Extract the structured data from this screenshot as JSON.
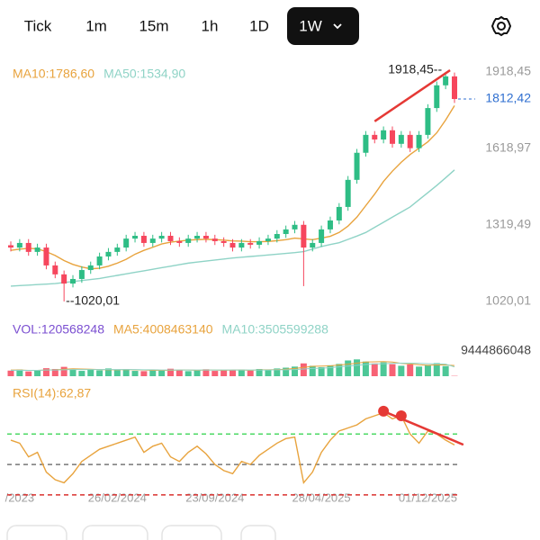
{
  "toolbar": {
    "tabs": [
      "Tick",
      "1m",
      "15m",
      "1h",
      "1D",
      "1W"
    ],
    "selected": 5
  },
  "chart_data": [
    {
      "type": "candlestick",
      "categories": [
        null,
        "/2023",
        null,
        null,
        null,
        null,
        null,
        null,
        null,
        null,
        null,
        null,
        "26/02/2024",
        null,
        null,
        null,
        null,
        null,
        null,
        null,
        null,
        null,
        null,
        "23/09/2024",
        null,
        null,
        null,
        null,
        null,
        null,
        null,
        null,
        null,
        null,
        null,
        "28/04/2025",
        null,
        null,
        null,
        null,
        null,
        null,
        null,
        null,
        null,
        null,
        null,
        "01/12/2025",
        null,
        null,
        null
      ],
      "open": [
        1240,
        1231,
        1249,
        1214,
        1231,
        1161,
        1126,
        1090,
        1108,
        1143,
        1161,
        1196,
        1214,
        1231,
        1266,
        1277,
        1249,
        1266,
        1277,
        1256,
        1249,
        1266,
        1277,
        1266,
        1256,
        1249,
        1231,
        1249,
        1242,
        1256,
        1266,
        1284,
        1302,
        1320,
        1231,
        1249,
        1302,
        1337,
        1390,
        1496,
        1602,
        1672,
        1654,
        1690,
        1637,
        1672,
        1620,
        1672,
        1777,
        1866,
        1901
      ],
      "high": [
        1255,
        1264,
        1264,
        1246,
        1246,
        1176,
        1141,
        1123,
        1158,
        1176,
        1211,
        1229,
        1246,
        1281,
        1292,
        1292,
        1281,
        1292,
        1292,
        1271,
        1281,
        1292,
        1292,
        1281,
        1271,
        1264,
        1264,
        1264,
        1271,
        1281,
        1299,
        1317,
        1335,
        1335,
        1264,
        1317,
        1352,
        1405,
        1511,
        1617,
        1687,
        1687,
        1705,
        1705,
        1687,
        1687,
        1687,
        1792,
        1881,
        1918.45,
        1916
      ],
      "low": [
        1216,
        1216,
        1199,
        1199,
        1146,
        1111,
        1020.01,
        1075,
        1093,
        1128,
        1146,
        1181,
        1199,
        1216,
        1251,
        1234,
        1234,
        1251,
        1241,
        1234,
        1234,
        1251,
        1251,
        1241,
        1234,
        1216,
        1216,
        1227,
        1227,
        1241,
        1251,
        1269,
        1287,
        1080,
        1216,
        1234,
        1287,
        1322,
        1375,
        1481,
        1587,
        1639,
        1639,
        1622,
        1622,
        1605,
        1605,
        1657,
        1762,
        1851,
        1797
      ],
      "close": [
        1231,
        1249,
        1214,
        1231,
        1161,
        1126,
        1090,
        1108,
        1143,
        1161,
        1196,
        1214,
        1231,
        1266,
        1277,
        1249,
        1266,
        1277,
        1256,
        1249,
        1266,
        1277,
        1266,
        1256,
        1249,
        1231,
        1249,
        1242,
        1256,
        1266,
        1284,
        1302,
        1320,
        1231,
        1249,
        1302,
        1337,
        1390,
        1496,
        1602,
        1672,
        1654,
        1690,
        1637,
        1672,
        1620,
        1672,
        1777,
        1866,
        1901,
        1812.42
      ],
      "up_color": "#2ebd85",
      "down_color": "#f6465d",
      "series": [
        {
          "name": "MA10:1786,60",
          "color": "#e8a33d",
          "values": [
            1220,
            1225,
            1228,
            1226,
            1215,
            1200,
            1180,
            1165,
            1155,
            1148,
            1150,
            1158,
            1170,
            1185,
            1205,
            1220,
            1232,
            1245,
            1252,
            1256,
            1260,
            1262,
            1263,
            1262,
            1260,
            1257,
            1256,
            1254,
            1254,
            1255,
            1258,
            1262,
            1268,
            1265,
            1262,
            1268,
            1275,
            1290,
            1315,
            1350,
            1395,
            1440,
            1490,
            1530,
            1565,
            1595,
            1620,
            1645,
            1680,
            1730,
            1786.6
          ]
        },
        {
          "name": "MA50:1534,90",
          "color": "#8fd3c6",
          "values": [
            1080,
            1082,
            1084,
            1086,
            1088,
            1090,
            1094,
            1098,
            1102,
            1106,
            1110,
            1116,
            1122,
            1128,
            1134,
            1140,
            1146,
            1152,
            1158,
            1164,
            1170,
            1174,
            1178,
            1182,
            1186,
            1190,
            1193,
            1196,
            1199,
            1202,
            1205,
            1208,
            1211,
            1215,
            1225,
            1235,
            1243,
            1250,
            1263,
            1276,
            1290,
            1310,
            1330,
            1350,
            1370,
            1390,
            1418,
            1446,
            1474,
            1504,
            1534.9
          ]
        }
      ],
      "ylim": [
        967,
        1971
      ],
      "yticks": [
        {
          "value": 1918.45,
          "label": "1918,45"
        },
        {
          "value": 1618.97,
          "label": "1618,97"
        },
        {
          "value": 1319.49,
          "label": "1319,49"
        },
        {
          "value": 1020.01,
          "label": "1020,01"
        }
      ],
      "last_price": {
        "value": 1812.42,
        "label": "1812,42",
        "color": "#2f6fd0"
      },
      "annotations": [
        {
          "x": 49,
          "value": 1918.45,
          "label": "1918,45--"
        },
        {
          "x": 6,
          "value": 1020.01,
          "label": "--1020,01"
        }
      ],
      "trendline": {
        "x": [
          41,
          49.5
        ],
        "y": [
          1725,
          1925
        ],
        "color": "#e53935"
      }
    },
    {
      "type": "volume",
      "series": [
        {
          "name": "VOL:120568248",
          "color": "#7b4fd1",
          "values": [
            2100000000,
            2500000000,
            1800000000,
            2200000000,
            3000000000,
            2700000000,
            3500000000,
            2400000000,
            2000000000,
            2600000000,
            2200000000,
            2900000000,
            2300000000,
            2600000000,
            2000000000,
            1900000000,
            2400000000,
            2100000000,
            2800000000,
            2200000000,
            1900000000,
            2300000000,
            2600000000,
            2000000000,
            2400000000,
            2200000000,
            2500000000,
            2100000000,
            2700000000,
            2300000000,
            2900000000,
            3200000000,
            3600000000,
            4800000000,
            3900000000,
            3400000000,
            4100000000,
            4600000000,
            5900000000,
            6300000000,
            5500000000,
            4800000000,
            5200000000,
            4500000000,
            3900000000,
            4400000000,
            3600000000,
            4200000000,
            4900000000,
            3800000000,
            120568248
          ]
        },
        {
          "name": "MA5:4008463140",
          "color": "#e8a33d",
          "values": [
            2300000000,
            2300000000,
            2200000000,
            2200000000,
            2300000000,
            2400000000,
            2600000000,
            2800000000,
            2700000000,
            2600000000,
            2500000000,
            2400000000,
            2400000000,
            2500000000,
            2400000000,
            2300000000,
            2200000000,
            2200000000,
            2200000000,
            2300000000,
            2300000000,
            2200000000,
            2300000000,
            2300000000,
            2200000000,
            2300000000,
            2300000000,
            2200000000,
            2400000000,
            2400000000,
            2500000000,
            2600000000,
            2900000000,
            3300000000,
            3700000000,
            3800000000,
            3900000000,
            4200000000,
            4500000000,
            4900000000,
            5300000000,
            5400000000,
            5500000000,
            5300000000,
            4800000000,
            4600000000,
            4300000000,
            4100000000,
            4200000000,
            4200000000,
            4008463140
          ]
        },
        {
          "name": "MA10:3505599288",
          "color": "#8fd3c6",
          "values": [
            2200000000,
            2200000000,
            2200000000,
            2200000000,
            2300000000,
            2300000000,
            2400000000,
            2500000000,
            2500000000,
            2500000000,
            2500000000,
            2500000000,
            2500000000,
            2500000000,
            2500000000,
            2400000000,
            2400000000,
            2300000000,
            2300000000,
            2300000000,
            2300000000,
            2300000000,
            2300000000,
            2300000000,
            2300000000,
            2300000000,
            2300000000,
            2300000000,
            2300000000,
            2300000000,
            2400000000,
            2400000000,
            2500000000,
            2700000000,
            2900000000,
            3000000000,
            3200000000,
            3500000000,
            3800000000,
            4100000000,
            4400000000,
            4600000000,
            4700000000,
            4800000000,
            4900000000,
            4900000000,
            4800000000,
            4700000000,
            4600000000,
            4500000000,
            3505599288
          ]
        }
      ],
      "ylim": [
        0,
        9444866048
      ],
      "yticks": [
        9444866048
      ]
    },
    {
      "type": "line",
      "series": [
        {
          "name": "RSI(14):62,87",
          "color": "#e8a33d",
          "values": [
            66,
            64,
            55,
            58,
            45,
            40,
            38,
            44,
            52,
            56,
            60,
            62,
            64,
            66,
            68,
            58,
            62,
            64,
            55,
            52,
            58,
            62,
            57,
            50,
            46,
            44,
            52,
            50,
            56,
            60,
            64,
            67,
            68,
            38,
            45,
            58,
            66,
            72,
            74,
            76,
            80,
            82,
            84,
            80,
            82,
            70,
            64,
            72,
            70,
            66,
            62.87
          ]
        }
      ],
      "ylim": [
        27,
        95
      ],
      "reference_lines": [
        {
          "value": 70,
          "color": "#4cd964"
        },
        {
          "value": 50,
          "color": "#777777"
        },
        {
          "value": 30,
          "color": "#d9302f"
        }
      ],
      "trendline": {
        "x": [
          42,
          51
        ],
        "y": [
          85,
          63
        ],
        "color": "#e53935"
      },
      "markers": {
        "x": [
          42,
          44
        ],
        "y": [
          85,
          82
        ],
        "color": "#e53935"
      }
    }
  ]
}
